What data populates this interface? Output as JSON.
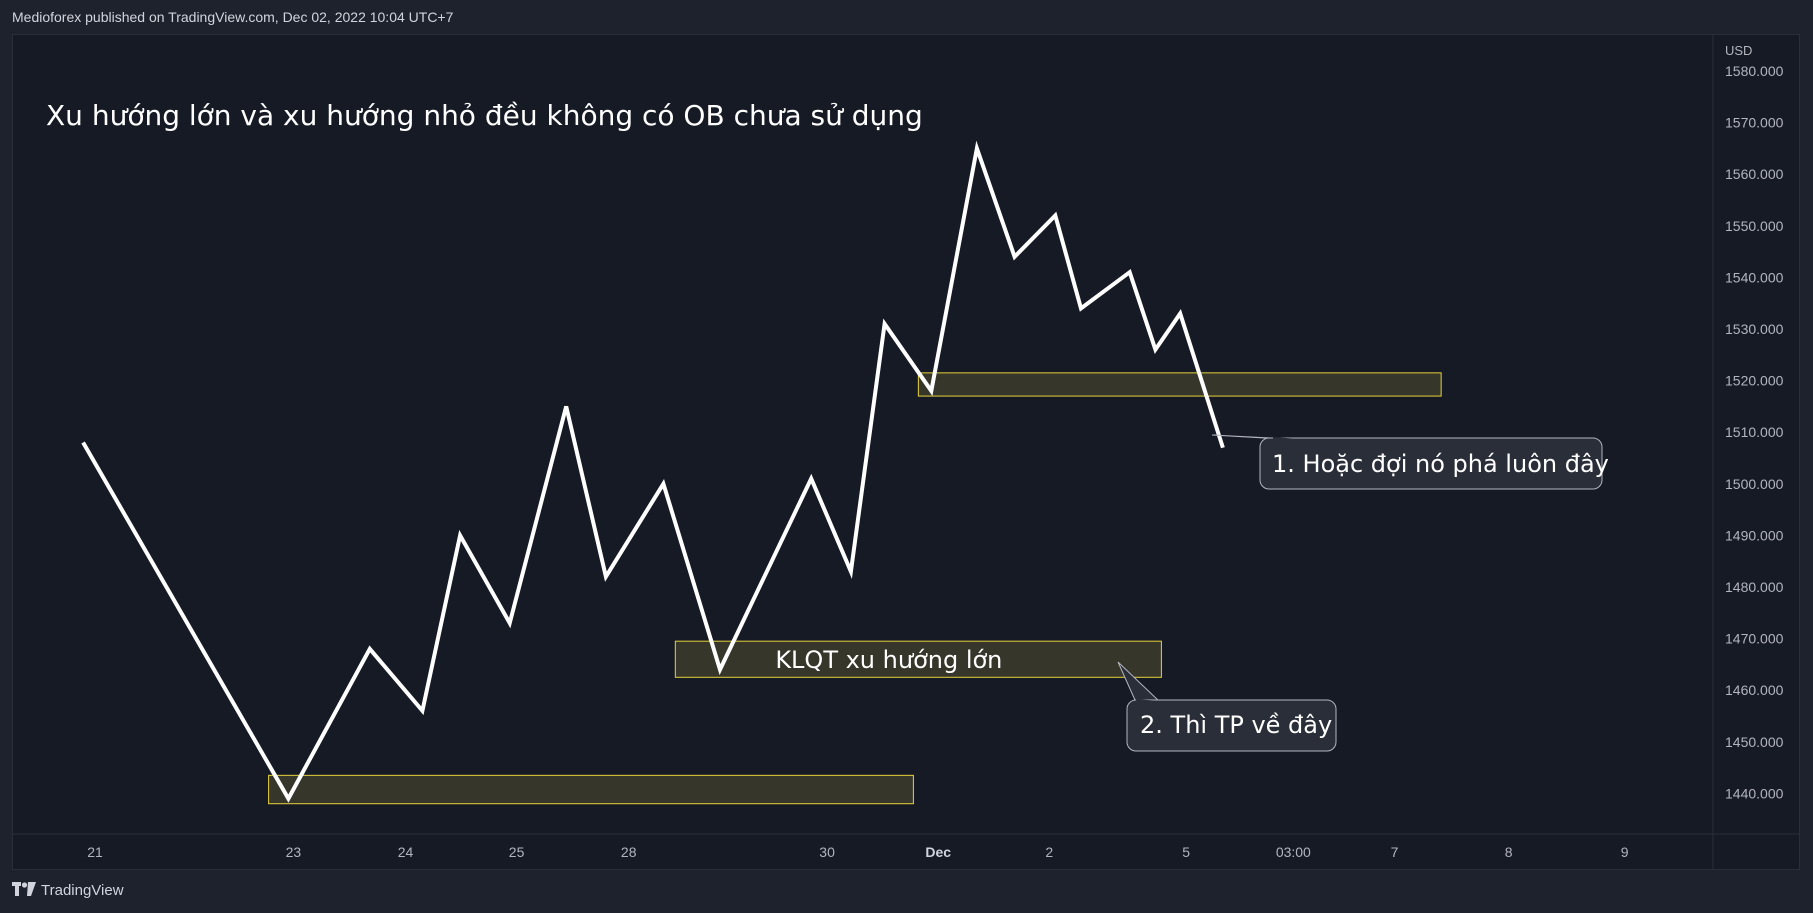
{
  "header": {
    "published_text": "Medioforex published on TradingView.com, Dec 02, 2022 10:04 UTC+7"
  },
  "footer": {
    "brand": "TradingView",
    "logo_icon": "tradingview-logo-icon"
  },
  "colors": {
    "background": "#161a25",
    "line": "#ffffff",
    "zone_fill": "#3a3a2c",
    "zone_border": "#e6d23c",
    "callout_fill": "#2a2e39",
    "callout_border": "#b2b5be",
    "axis_text": "#b2b5be"
  },
  "chart_data": {
    "type": "line",
    "title": "Xu hướng lớn và xu hướng nhỏ đều không có OB chưa sử dụng",
    "currency_label": "USD",
    "y_ticks": [
      "1580.000",
      "1570.000",
      "1560.000",
      "1550.000",
      "1540.000",
      "1530.000",
      "1520.000",
      "1510.000",
      "1500.000",
      "1490.000",
      "1480.000",
      "1470.000",
      "1460.000",
      "1450.000",
      "1440.000"
    ],
    "x_ticks": [
      {
        "label": "21",
        "t": 0.0,
        "bold": false
      },
      {
        "label": "23",
        "t": 2.0,
        "bold": false
      },
      {
        "label": "24",
        "t": 3.13,
        "bold": false
      },
      {
        "label": "25",
        "t": 4.25,
        "bold": false
      },
      {
        "label": "28",
        "t": 5.38,
        "bold": false
      },
      {
        "label": "30",
        "t": 7.38,
        "bold": false
      },
      {
        "label": "Dec",
        "t": 8.5,
        "bold": true
      },
      {
        "label": "2",
        "t": 9.62,
        "bold": false
      },
      {
        "label": "5",
        "t": 11.0,
        "bold": false
      },
      {
        "label": "03:00",
        "t": 12.08,
        "bold": false
      },
      {
        "label": "7",
        "t": 13.1,
        "bold": false
      },
      {
        "label": "8",
        "t": 14.25,
        "bold": false
      },
      {
        "label": "9",
        "t": 15.42,
        "bold": false
      }
    ],
    "ylim": [
      1436,
      1584
    ],
    "series": [
      {
        "points": [
          {
            "t": -0.12,
            "y": 1508
          },
          {
            "t": 1.95,
            "y": 1439
          },
          {
            "t": 2.77,
            "y": 1468
          },
          {
            "t": 3.3,
            "y": 1456
          },
          {
            "t": 3.68,
            "y": 1490
          },
          {
            "t": 4.18,
            "y": 1473
          },
          {
            "t": 4.75,
            "y": 1515
          },
          {
            "t": 5.15,
            "y": 1482
          },
          {
            "t": 5.73,
            "y": 1500
          },
          {
            "t": 6.3,
            "y": 1464
          },
          {
            "t": 7.22,
            "y": 1501
          },
          {
            "t": 7.62,
            "y": 1483
          },
          {
            "t": 7.96,
            "y": 1531
          },
          {
            "t": 8.43,
            "y": 1518
          },
          {
            "t": 8.89,
            "y": 1565
          },
          {
            "t": 9.27,
            "y": 1544
          },
          {
            "t": 9.68,
            "y": 1552
          },
          {
            "t": 9.94,
            "y": 1534
          },
          {
            "t": 10.43,
            "y": 1541
          },
          {
            "t": 10.69,
            "y": 1526
          },
          {
            "t": 10.94,
            "y": 1533
          },
          {
            "t": 11.37,
            "y": 1507
          }
        ]
      }
    ],
    "zones": [
      {
        "t1": 1.75,
        "t2": 8.25,
        "y_top": 1443.5,
        "y_bottom": 1438
      },
      {
        "t1": 5.85,
        "t2": 10.75,
        "y_top": 1469.5,
        "y_bottom": 1462.5,
        "label": "KLQT xu hướng lớn"
      },
      {
        "t1": 8.3,
        "t2": 13.57,
        "y_top": 1521.5,
        "y_bottom": 1517
      }
    ],
    "annotations": [
      {
        "text": "1. Hoặc đợi nó phá luôn đây",
        "anchor_t": 11.37,
        "anchor_y": 1508
      },
      {
        "text": "2. Thì TP về đây",
        "anchor_t": 10.65,
        "anchor_y": 1466
      }
    ]
  }
}
